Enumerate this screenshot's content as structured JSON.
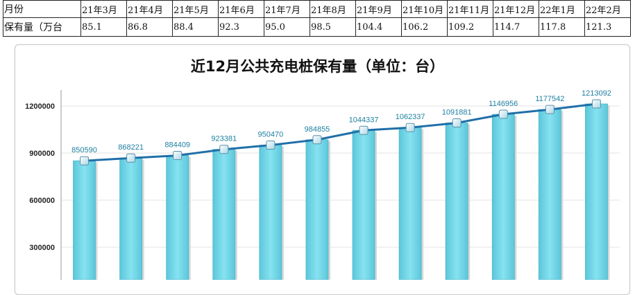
{
  "table": {
    "header": [
      "月份",
      "21年3月",
      "21年4月",
      "21年5月",
      "21年6月",
      "21年7月",
      "21年8月",
      "21年9月",
      "21年10月",
      "21年11月",
      "21年12月",
      "22年1月",
      "22年2月"
    ],
    "row": [
      "保有量（万台",
      "85.1",
      "86.8",
      "88.4",
      "92.3",
      "95.0",
      "98.5",
      "104.4",
      "106.2",
      "109.2",
      "114.7",
      "117.8",
      "121.3"
    ]
  },
  "chart_data": {
    "type": "bar",
    "title": "近12月公共充电桩保有量（单位：台）",
    "categories": [
      "21年3月",
      "21年4月",
      "21年5月",
      "21年6月",
      "21年7月",
      "21年8月",
      "21年9月",
      "21年10月",
      "21年11月",
      "21年12月",
      "22年1月",
      "22年2月"
    ],
    "values": [
      850590,
      868221,
      884409,
      923381,
      950470,
      984855,
      1044337,
      1062337,
      1091881,
      1146956,
      1177542,
      1213092
    ],
    "data_labels": [
      "850590",
      "868221",
      "884409",
      "923381",
      "950470",
      "984855",
      "1044337",
      "1062337",
      "1091881",
      "1146956",
      "1177542",
      "1213092"
    ],
    "overlay": "line",
    "y_ticks": [
      "300000",
      "600000",
      "900000",
      "1200000"
    ],
    "ylim": [
      0,
      1300000
    ],
    "grid": true,
    "colors": {
      "bar": "#72d6e6",
      "bar_edge": "#4bb5c9",
      "line": "#1f6fa8",
      "marker": "#d9eef4",
      "label": "#1d7fa0"
    }
  }
}
